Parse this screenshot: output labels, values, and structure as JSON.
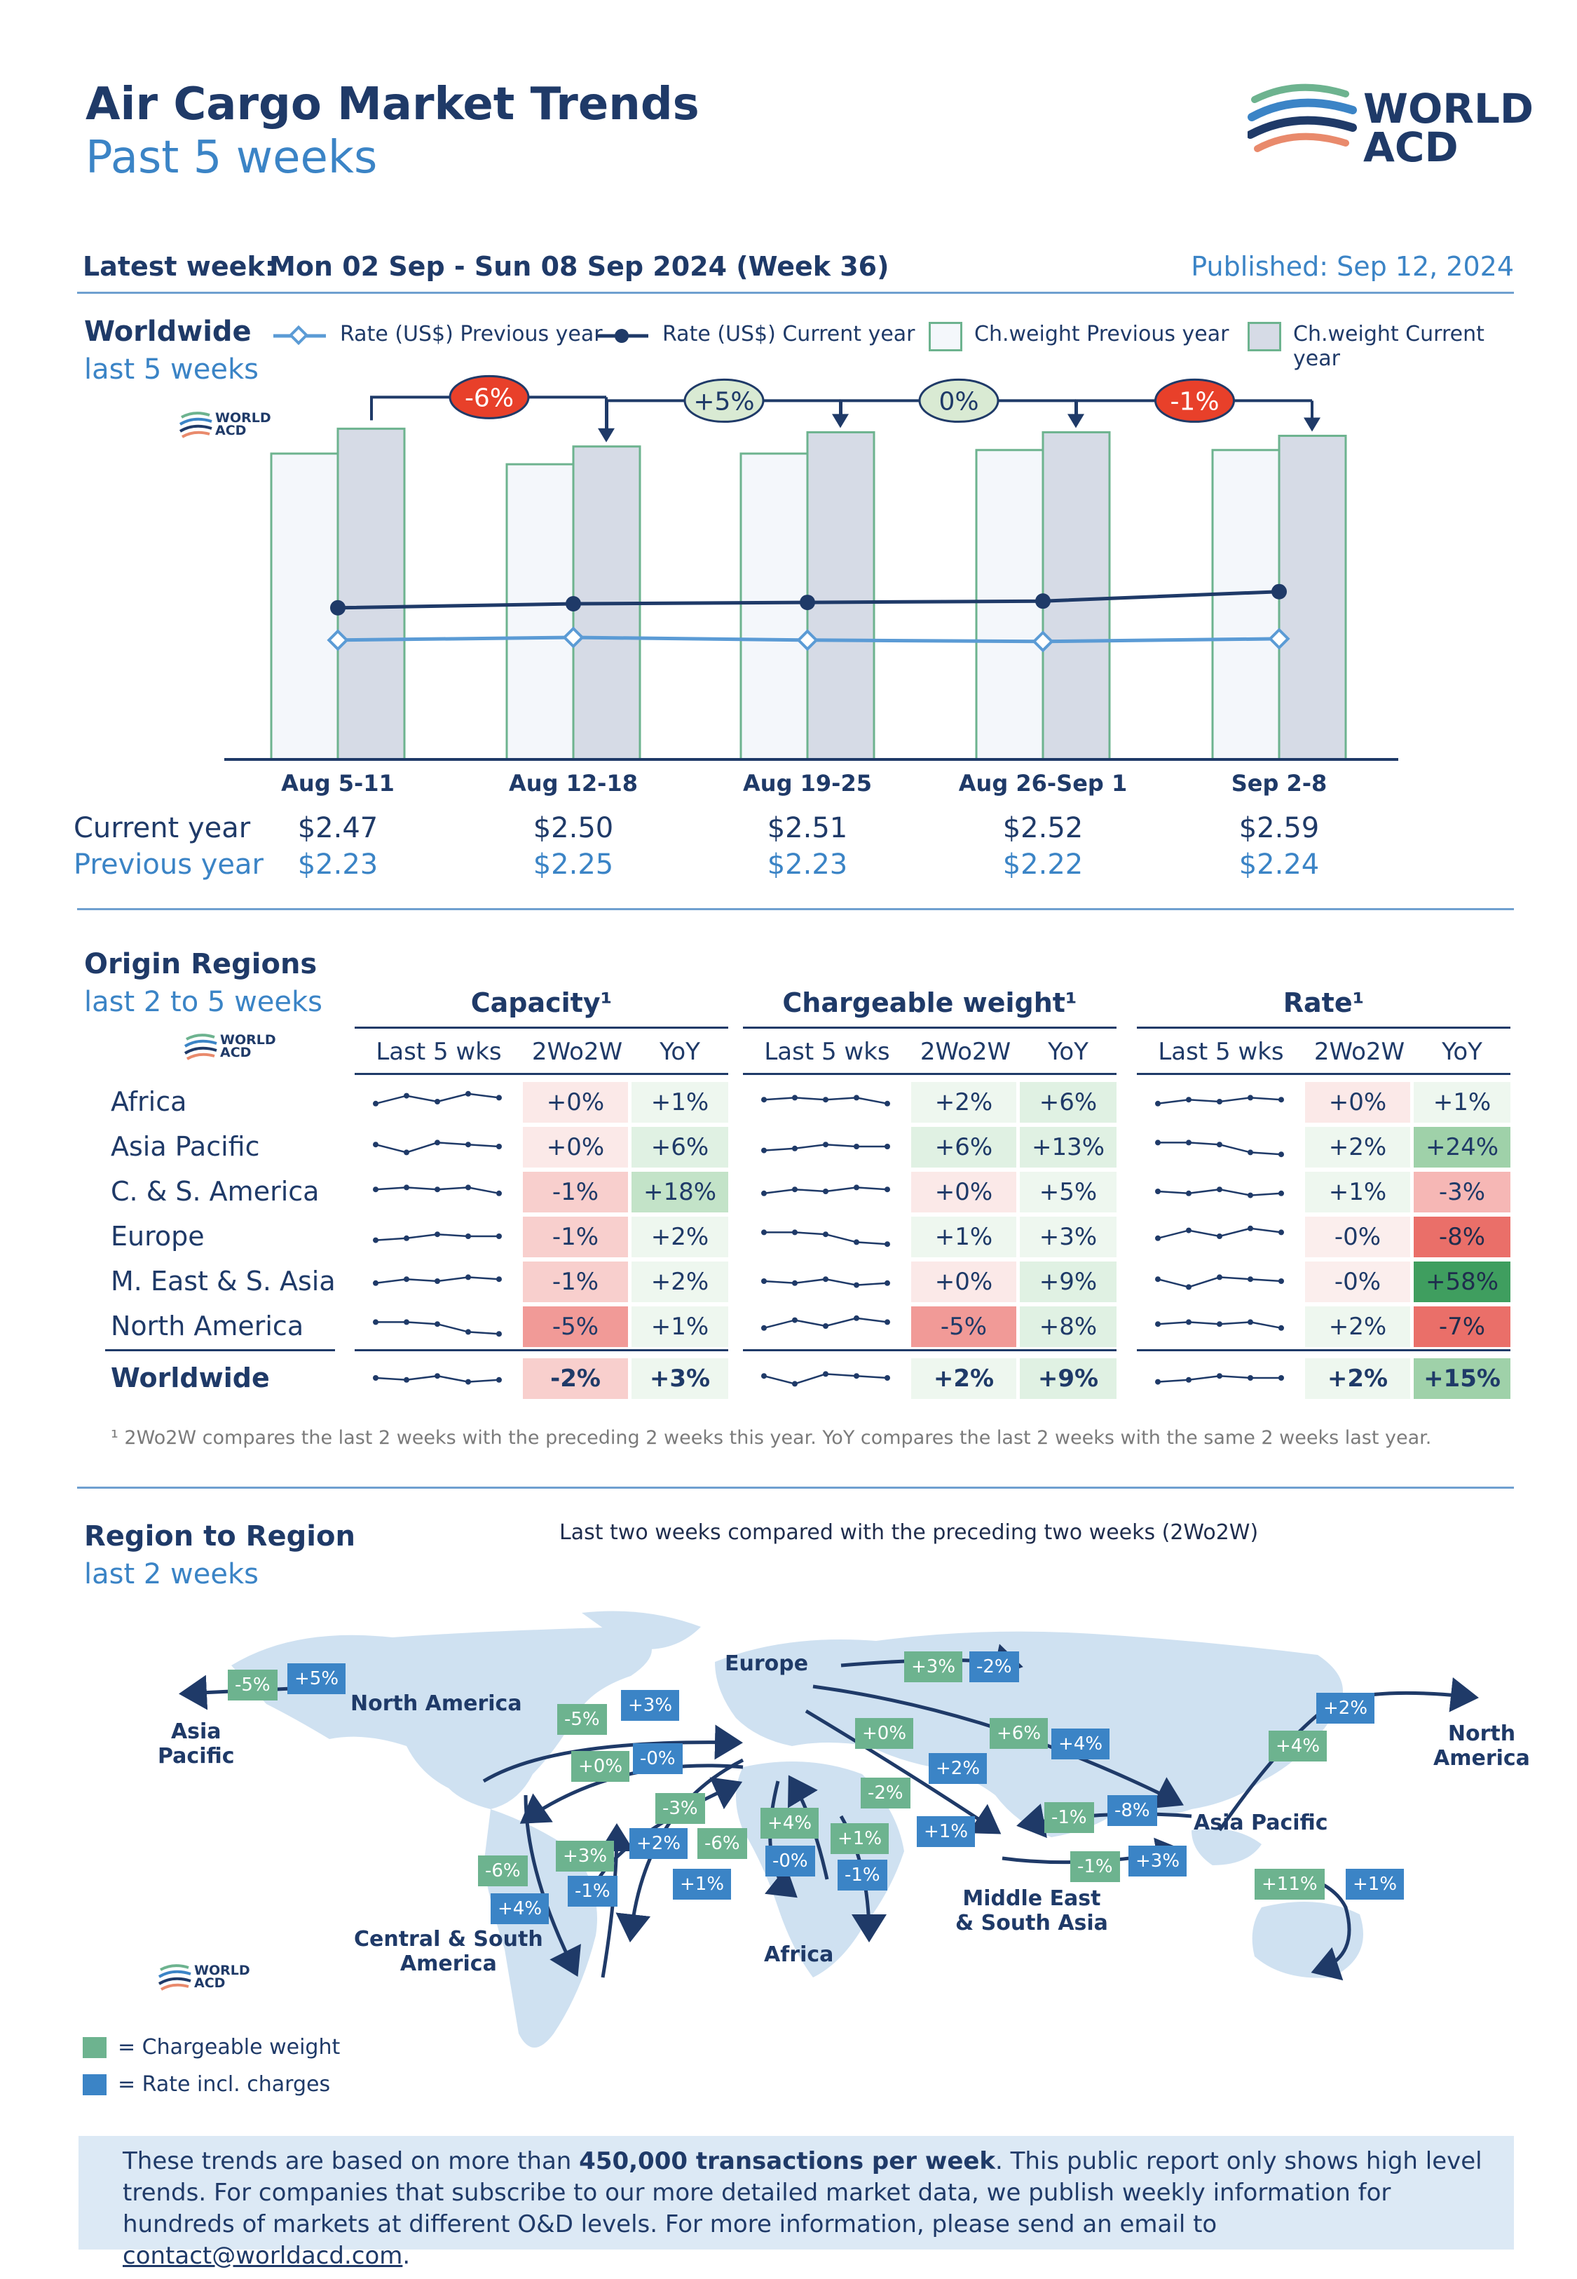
{
  "header": {
    "title": "Air Cargo Market Trends",
    "subtitle": "Past 5 weeks",
    "logo_line1": "WORLD",
    "logo_line2": "ACD"
  },
  "latest": {
    "label": "Latest week:",
    "value": "Mon 02 Sep - Sun 08 Sep 2024 (Week 36)",
    "published": "Published: Sep 12, 2024"
  },
  "worldwide": {
    "title": "Worldwide",
    "subtitle": "last 5 weeks",
    "legend": [
      "Rate (US$) Previous year",
      "Rate (US$) Current year",
      "Ch.weight Previous year",
      "Ch.weight Current year"
    ],
    "row_labels": [
      "Current year",
      "Previous year"
    ]
  },
  "chart_data": {
    "type": "bar",
    "categories": [
      "Aug 5-11",
      "Aug 12-18",
      "Aug 19-25",
      "Aug 26-Sep 1",
      "Sep 2-8"
    ],
    "ylabel": "",
    "series": [
      {
        "name": "Ch.weight Previous year",
        "type": "bar",
        "values": [
          0.86,
          0.83,
          0.86,
          0.87,
          0.87
        ]
      },
      {
        "name": "Ch.weight Current year",
        "type": "bar",
        "values": [
          0.93,
          0.88,
          0.92,
          0.92,
          0.91
        ]
      },
      {
        "name": "Rate (US$) Current year",
        "type": "line",
        "values": [
          2.47,
          2.5,
          2.51,
          2.52,
          2.59
        ]
      },
      {
        "name": "Rate (US$) Previous year",
        "type": "line",
        "values": [
          2.23,
          2.25,
          2.23,
          2.22,
          2.24
        ]
      }
    ],
    "current_year_labels": [
      "$2.47",
      "$2.50",
      "$2.51",
      "$2.52",
      "$2.59"
    ],
    "previous_year_labels": [
      "$2.23",
      "$2.25",
      "$2.23",
      "$2.22",
      "$2.24"
    ],
    "weekly_changes": [
      "-6%",
      "+5%",
      "0%",
      "-1%"
    ],
    "colors": {
      "bar_prev": "#f4f7fb",
      "bar_cur": "#d6dbe6",
      "bar_border": "#6db38f",
      "line_cur": "#1f3a68",
      "line_prev": "#5b9bd5",
      "neg": "#e8402a",
      "pos": "#d9ead3"
    }
  },
  "origin": {
    "title": "Origin Regions",
    "subtitle": "last 2 to 5 weeks",
    "groups": [
      "Capacity¹",
      "Chargeable weight¹",
      "Rate¹"
    ],
    "subheads": [
      "Last 5 wks",
      "2Wo2W",
      "YoY"
    ],
    "regions": [
      "Africa",
      "Asia Pacific",
      "C. & S. America",
      "Europe",
      "M. East & S. Asia",
      "North America",
      "Worldwide"
    ],
    "capacity": [
      [
        "+0%",
        "+1%"
      ],
      [
        "+0%",
        "+6%"
      ],
      [
        "-1%",
        "+18%"
      ],
      [
        "-1%",
        "+2%"
      ],
      [
        "-1%",
        "+2%"
      ],
      [
        "-5%",
        "+1%"
      ],
      [
        "-2%",
        "+3%"
      ]
    ],
    "chargeable_weight": [
      [
        "+2%",
        "+6%"
      ],
      [
        "+6%",
        "+13%"
      ],
      [
        "+0%",
        "+5%"
      ],
      [
        "+1%",
        "+3%"
      ],
      [
        "+0%",
        "+9%"
      ],
      [
        "-5%",
        "+8%"
      ],
      [
        "+2%",
        "+9%"
      ]
    ],
    "rate": [
      [
        "+0%",
        "+1%"
      ],
      [
        "+2%",
        "+24%"
      ],
      [
        "+1%",
        "-3%"
      ],
      [
        "-0%",
        "-8%"
      ],
      [
        "-0%",
        "+58%"
      ],
      [
        "+2%",
        "-7%"
      ],
      [
        "+2%",
        "+15%"
      ]
    ],
    "footnote": "¹ 2Wo2W compares the last 2 weeks with the preceding 2 weeks this year. YoY compares the last 2 weeks with the same 2 weeks last year."
  },
  "r2r": {
    "title": "Region to Region",
    "subtitle": "last 2 weeks",
    "caption": "Last two weeks compared with the preceding two weeks (2Wo2W)",
    "labels": {
      "asia_pacific_w": "Asia\nPacific",
      "north_america_w": "North America",
      "europe": "Europe",
      "north_america_e": "North\nAmerica",
      "asia_pacific_e": "Asia Pacific",
      "csa": "Central & South\nAmerica",
      "africa": "Africa",
      "mesa": "Middle East\n& South Asia"
    },
    "chips": [
      {
        "t": "-5%",
        "c": "g"
      },
      {
        "t": "+5%",
        "c": "b"
      },
      {
        "t": "-5%",
        "c": "g"
      },
      {
        "t": "+3%",
        "c": "b"
      },
      {
        "t": "+0%",
        "c": "g"
      },
      {
        "t": "-0%",
        "c": "b"
      },
      {
        "t": "+3%",
        "c": "g"
      },
      {
        "t": "-2%",
        "c": "b"
      },
      {
        "t": "+0%",
        "c": "g"
      },
      {
        "t": "+6%",
        "c": "g"
      },
      {
        "t": "+4%",
        "c": "b"
      },
      {
        "t": "+2%",
        "c": "b"
      },
      {
        "t": "+4%",
        "c": "g"
      },
      {
        "t": "+2%",
        "c": "b"
      },
      {
        "t": "-2%",
        "c": "g"
      },
      {
        "t": "+1%",
        "c": "b"
      },
      {
        "t": "-1%",
        "c": "g"
      },
      {
        "t": "-8%",
        "c": "b"
      },
      {
        "t": "-1%",
        "c": "g"
      },
      {
        "t": "+3%",
        "c": "b"
      },
      {
        "t": "+11%",
        "c": "g"
      },
      {
        "t": "+1%",
        "c": "b"
      },
      {
        "t": "-3%",
        "c": "g"
      },
      {
        "t": "+2%",
        "c": "b"
      },
      {
        "t": "-6%",
        "c": "g"
      },
      {
        "t": "+1%",
        "c": "b"
      },
      {
        "t": "+4%",
        "c": "g"
      },
      {
        "t": "-0%",
        "c": "b"
      },
      {
        "t": "+1%",
        "c": "g"
      },
      {
        "t": "-1%",
        "c": "b"
      },
      {
        "t": "-6%",
        "c": "g"
      },
      {
        "t": "+4%",
        "c": "b"
      },
      {
        "t": "+3%",
        "c": "g"
      },
      {
        "t": "-1%",
        "c": "b"
      }
    ],
    "legend": [
      "=  Chargeable weight",
      "=  Rate incl. charges"
    ]
  },
  "info": {
    "p1": "These trends are based on more than ",
    "bold": "450,000 transactions per week",
    "p2": ". This public report only shows high level trends. For companies that subscribe to our more detailed market data, we publish weekly information for hundreds of markets at different O&D levels. For more information, please send an email to ",
    "email": "contact@worldacd.com",
    "p3": "."
  }
}
